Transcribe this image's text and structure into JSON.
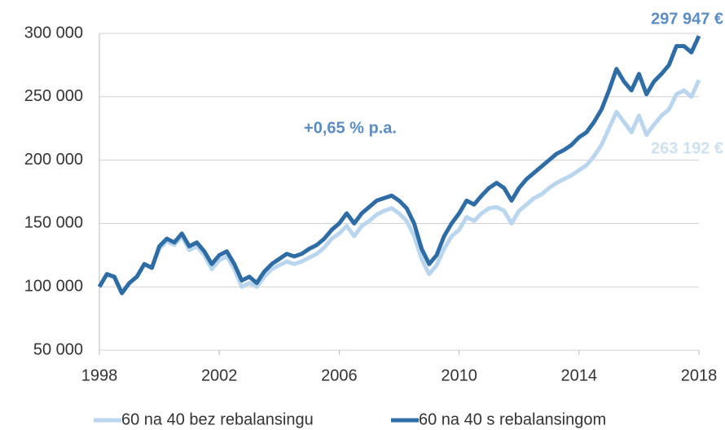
{
  "chart_data": {
    "type": "line",
    "annotations": [
      "297 947 €",
      "263 192 €",
      "+0,65 % p.a."
    ],
    "x": [
      1998,
      1998.25,
      1998.5,
      1998.75,
      1999,
      1999.25,
      1999.5,
      1999.75,
      2000,
      2000.25,
      2000.5,
      2000.75,
      2001,
      2001.25,
      2001.5,
      2001.75,
      2002,
      2002.25,
      2002.5,
      2002.75,
      2003,
      2003.25,
      2003.5,
      2003.75,
      2004,
      2004.25,
      2004.5,
      2004.75,
      2005,
      2005.25,
      2005.5,
      2005.75,
      2006,
      2006.25,
      2006.5,
      2006.75,
      2007,
      2007.25,
      2007.5,
      2007.75,
      2008,
      2008.25,
      2008.5,
      2008.75,
      2009,
      2009.25,
      2009.5,
      2009.75,
      2010,
      2010.25,
      2010.5,
      2010.75,
      2011,
      2011.25,
      2011.5,
      2011.75,
      2012,
      2012.25,
      2012.5,
      2012.75,
      2013,
      2013.25,
      2013.5,
      2013.75,
      2014,
      2014.25,
      2014.5,
      2014.75,
      2015,
      2015.25,
      2015.5,
      2015.75,
      2016,
      2016.25,
      2016.5,
      2016.75,
      2017,
      2017.25,
      2017.5,
      2017.75,
      2018
    ],
    "series": [
      {
        "name": "60 na 40 bez rebalansingu",
        "color": "#bad5ee",
        "values": [
          100000,
          110000,
          107000,
          95000,
          103000,
          108000,
          118000,
          115000,
          130000,
          136000,
          133000,
          140000,
          129000,
          132000,
          125000,
          114000,
          121000,
          124000,
          114000,
          100000,
          103000,
          100000,
          108000,
          114000,
          117000,
          120000,
          118000,
          120000,
          123000,
          126000,
          131000,
          138000,
          142000,
          148000,
          140000,
          148000,
          152000,
          157000,
          160000,
          162000,
          158000,
          152000,
          140000,
          122000,
          110000,
          117000,
          130000,
          140000,
          145000,
          155000,
          152000,
          158000,
          162000,
          163000,
          160000,
          150000,
          160000,
          165000,
          170000,
          173000,
          178000,
          182000,
          185000,
          188000,
          192000,
          196000,
          203000,
          212000,
          225000,
          238000,
          230000,
          222000,
          235000,
          220000,
          228000,
          235000,
          240000,
          252000,
          255000,
          250000,
          263192
        ]
      },
      {
        "name": "60 na 40 s rebalansingom",
        "color": "#2e6ca6",
        "values": [
          100000,
          110000,
          108000,
          95000,
          103000,
          108000,
          118000,
          115000,
          132000,
          138000,
          135000,
          142000,
          132000,
          135000,
          128000,
          118000,
          125000,
          128000,
          118000,
          105000,
          108000,
          103000,
          112000,
          118000,
          122000,
          126000,
          124000,
          126000,
          130000,
          133000,
          138000,
          145000,
          150000,
          158000,
          150000,
          158000,
          163000,
          168000,
          170000,
          172000,
          168000,
          162000,
          150000,
          130000,
          118000,
          125000,
          140000,
          150000,
          158000,
          168000,
          165000,
          172000,
          178000,
          182000,
          178000,
          168000,
          178000,
          185000,
          190000,
          195000,
          200000,
          205000,
          208000,
          212000,
          218000,
          222000,
          230000,
          240000,
          255000,
          272000,
          262000,
          255000,
          268000,
          252000,
          262000,
          268000,
          275000,
          290000,
          290000,
          285000,
          297947
        ]
      }
    ],
    "xlim": [
      1998,
      2018
    ],
    "xticks": [
      1998,
      2002,
      2006,
      2010,
      2014,
      2018
    ],
    "ylim": [
      50000,
      300000
    ],
    "yticks": [
      {
        "value": 50000,
        "label": "50 000"
      },
      {
        "value": 100000,
        "label": "100 000"
      },
      {
        "value": 150000,
        "label": "150 000"
      },
      {
        "value": 200000,
        "label": "200 000"
      },
      {
        "value": 250000,
        "label": "250 000"
      },
      {
        "value": 300000,
        "label": "300 000"
      }
    ],
    "grid": true,
    "legend": "bottom"
  }
}
